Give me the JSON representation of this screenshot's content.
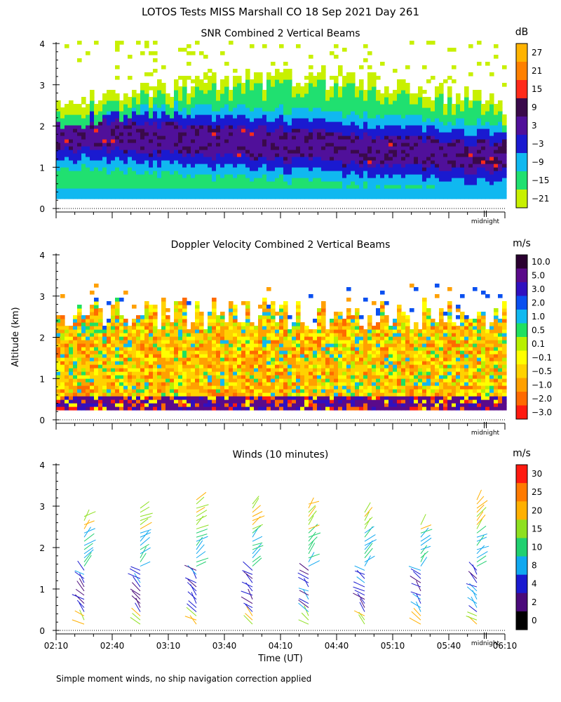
{
  "title": "LOTOS Tests MISS Marshall CO  18 Sep 2021 Day 261",
  "ylabel": "Altitude (km)",
  "xlabel": "Time (UT)",
  "footer": "Simple moment winds, no ship navigation correction applied",
  "midnight_label": "midnight",
  "chart_data": [
    {
      "type": "heatmap",
      "title": "SNR Combined 2 Vertical Beams",
      "ylabel": "Altitude (km)",
      "ylim": [
        0,
        4
      ],
      "y_ticks": [
        "0",
        "1",
        "2",
        "3",
        "4"
      ],
      "xlim_minutes": [
        130,
        370
      ],
      "colorbar": {
        "unit": "dB",
        "labels": [
          "27",
          "21",
          "15",
          "9",
          "3",
          "−3",
          "−9",
          "−15",
          "−21"
        ],
        "colors": [
          "#ffb300",
          "#ff8000",
          "#ff2a1a",
          "#3a0a4a",
          "#50109a",
          "#1a1ad0",
          "#10b8f0",
          "#20e070",
          "#c8f000"
        ]
      }
    },
    {
      "type": "heatmap",
      "title": "Doppler Velocity Combined 2 Vertical Beams",
      "ylabel": "Altitude (km)",
      "ylim": [
        0,
        4
      ],
      "y_ticks": [
        "0",
        "1",
        "2",
        "3",
        "4"
      ],
      "xlim_minutes": [
        130,
        370
      ],
      "colorbar": {
        "unit": "m/s",
        "labels": [
          "10.0",
          "5.0",
          "3.0",
          "2.0",
          "1.0",
          "0.5",
          "0.1",
          "−0.1",
          "−0.5",
          "−1.0",
          "−2.0",
          "−3.0"
        ],
        "colors": [
          "#2a0030",
          "#5a0a8a",
          "#3010c0",
          "#0a50f0",
          "#10b8f0",
          "#20e060",
          "#b8f000",
          "#ffff00",
          "#ffd200",
          "#ffa000",
          "#ff6a00",
          "#ff1a10"
        ]
      }
    },
    {
      "type": "scatter",
      "title": "Winds (10 minutes)",
      "ylabel": "Altitude (km)",
      "xlabel": "Time (UT)",
      "ylim": [
        0,
        4
      ],
      "y_ticks": [
        "0",
        "1",
        "2",
        "3",
        "4"
      ],
      "xlim_minutes": [
        130,
        370
      ],
      "x_ticks": [
        "02:10",
        "02:40",
        "03:10",
        "03:40",
        "04:10",
        "04:40",
        "05:10",
        "05:40",
        "06:10"
      ],
      "x_tick_minutes": [
        130,
        160,
        190,
        220,
        250,
        280,
        310,
        340,
        370
      ],
      "profile_times_min": [
        145,
        175,
        205,
        235,
        265,
        295,
        325,
        355
      ],
      "profile_tops_km": [
        2.8,
        3.0,
        3.2,
        3.1,
        3.1,
        2.9,
        2.6,
        3.2
      ],
      "colorbar": {
        "unit": "m/s",
        "labels": [
          "30",
          "25",
          "20",
          "15",
          "10",
          "8",
          "4",
          "2",
          "0"
        ],
        "colors": [
          "#ff1a10",
          "#ff7a00",
          "#ffb000",
          "#8ee020",
          "#20d070",
          "#10a8f0",
          "#1a1ad0",
          "#4a0a7a",
          "#000000"
        ]
      }
    }
  ]
}
